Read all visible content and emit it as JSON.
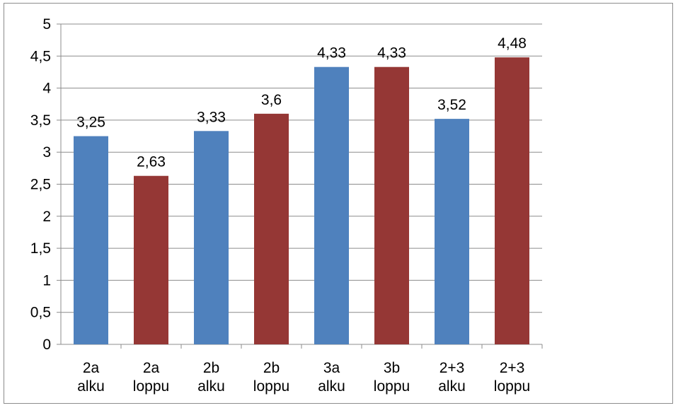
{
  "chart_data": {
    "type": "bar",
    "categories": [
      [
        "2a",
        "alku"
      ],
      [
        "2a",
        "loppu"
      ],
      [
        "2b",
        "alku"
      ],
      [
        "2b",
        "loppu"
      ],
      [
        "3a",
        "alku"
      ],
      [
        "3b",
        "loppu"
      ],
      [
        "2+3",
        "alku"
      ],
      [
        "2+3",
        "loppu"
      ]
    ],
    "values": [
      3.25,
      2.63,
      3.33,
      3.6,
      4.33,
      4.33,
      3.52,
      4.48
    ],
    "data_labels": [
      "3,25",
      "2,63",
      "3,33",
      "3,6",
      "4,33",
      "4,33",
      "3,52",
      "4,48"
    ],
    "y_ticks": [
      "0",
      "0,5",
      "1",
      "1,5",
      "2",
      "2,5",
      "3",
      "3,5",
      "4",
      "4,5",
      "5"
    ],
    "ylim": [
      0,
      5
    ],
    "y_step": 0.5,
    "grid": true,
    "legend": "none",
    "title": "",
    "xlabel": "",
    "ylabel": "",
    "colors": {
      "alku": "#4f81bd",
      "loppu": "#953735",
      "grid": "#8c8c8c",
      "frame": "#8c8c8c"
    }
  }
}
